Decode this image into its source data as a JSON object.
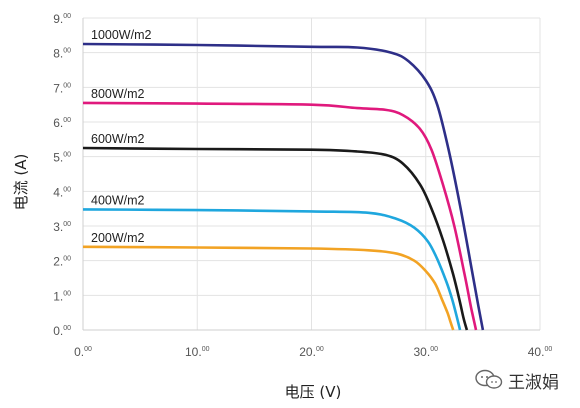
{
  "chart_data": {
    "type": "line",
    "xlabel": "电压 (V)",
    "ylabel": "电流 (A)",
    "xlim": [
      0,
      40
    ],
    "ylim": [
      0,
      9
    ],
    "xticks": [
      {
        "value": 0,
        "main": "0.",
        "sup": "00"
      },
      {
        "value": 10,
        "main": "10.",
        "sup": "00"
      },
      {
        "value": 20,
        "main": "20.",
        "sup": "00"
      },
      {
        "value": 30,
        "main": "30.",
        "sup": "00"
      },
      {
        "value": 40,
        "main": "40.",
        "sup": "00"
      }
    ],
    "yticks": [
      {
        "value": 0,
        "main": "0.",
        "sup": "00"
      },
      {
        "value": 1,
        "main": "1.",
        "sup": "00"
      },
      {
        "value": 2,
        "main": "2.",
        "sup": "00"
      },
      {
        "value": 3,
        "main": "3.",
        "sup": "00"
      },
      {
        "value": 4,
        "main": "4.",
        "sup": "00"
      },
      {
        "value": 5,
        "main": "5.",
        "sup": "00"
      },
      {
        "value": 6,
        "main": "6.",
        "sup": "00"
      },
      {
        "value": 7,
        "main": "7.",
        "sup": "00"
      },
      {
        "value": 8,
        "main": "8.",
        "sup": "00"
      },
      {
        "value": 9,
        "main": "9.",
        "sup": "00"
      }
    ],
    "grid": true,
    "series": [
      {
        "name": "1000W/m2",
        "color": "#2e2f88",
        "x": [
          0,
          10,
          20,
          24,
          27,
          28.5,
          30,
          31,
          32,
          33,
          34,
          34.6,
          35.0
        ],
        "y": [
          8.25,
          8.22,
          8.17,
          8.15,
          8.0,
          7.75,
          7.2,
          6.5,
          5.2,
          3.6,
          1.8,
          0.7,
          0
        ]
      },
      {
        "name": "800W/m2",
        "color": "#e0197d",
        "x": [
          0,
          10,
          20,
          24,
          26.5,
          28,
          29.5,
          30.5,
          31.5,
          32.5,
          33.4,
          34.0,
          34.4
        ],
        "y": [
          6.55,
          6.53,
          6.5,
          6.4,
          6.35,
          6.2,
          5.8,
          5.2,
          4.2,
          3.0,
          1.6,
          0.6,
          0
        ]
      },
      {
        "name": "600W/m2",
        "color": "#1a1a1a",
        "x": [
          0,
          10,
          20,
          24,
          26.5,
          28,
          29.5,
          30.5,
          31.5,
          32.4,
          33.0,
          33.3,
          33.6
        ],
        "y": [
          5.25,
          5.22,
          5.2,
          5.15,
          5.05,
          4.8,
          4.2,
          3.5,
          2.6,
          1.6,
          0.8,
          0.35,
          0
        ]
      },
      {
        "name": "400W/m2",
        "color": "#1fa7de",
        "x": [
          0,
          10,
          20,
          25,
          27.5,
          29,
          30.2,
          31,
          31.8,
          32.3,
          32.7,
          33.0
        ],
        "y": [
          3.48,
          3.46,
          3.42,
          3.38,
          3.2,
          2.95,
          2.55,
          2.05,
          1.4,
          0.9,
          0.4,
          0
        ]
      },
      {
        "name": "200W/m2",
        "color": "#f2a324",
        "x": [
          0,
          10,
          20,
          25,
          27.5,
          29,
          30,
          30.8,
          31.4,
          31.9,
          32.2,
          32.4
        ],
        "y": [
          2.4,
          2.38,
          2.35,
          2.3,
          2.2,
          2.0,
          1.7,
          1.35,
          0.9,
          0.5,
          0.2,
          0
        ]
      }
    ]
  },
  "watermark": {
    "text": "王淑娟",
    "icon": "wechat-bubbles-icon"
  }
}
